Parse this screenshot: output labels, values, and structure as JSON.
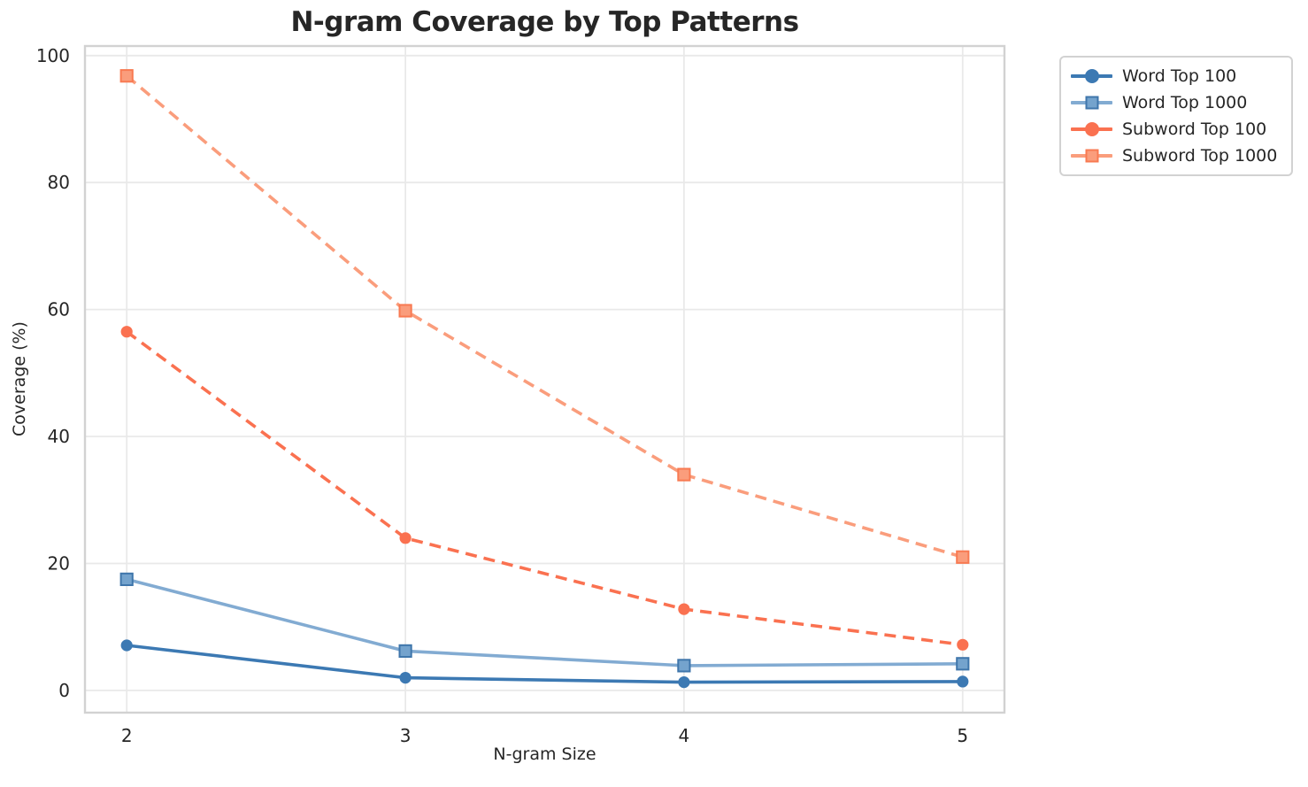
{
  "chart_data": {
    "type": "line",
    "title": "N-gram Coverage by Top Patterns",
    "xlabel": "N-gram Size",
    "ylabel": "Coverage (%)",
    "x": [
      2,
      3,
      4,
      5
    ],
    "xticks": [
      2,
      3,
      4,
      5
    ],
    "yticks": [
      0,
      20,
      40,
      60,
      80,
      100
    ],
    "xlim": [
      1.85,
      5.15
    ],
    "ylim": [
      -3.5,
      101.5
    ],
    "grid": true,
    "legend_position": "outside-upper-right",
    "series": [
      {
        "name": "Word Top 100",
        "values": [
          7.1,
          2.0,
          1.3,
          1.4
        ],
        "color": "#3c79b3",
        "marker": "circle",
        "linestyle": "solid"
      },
      {
        "name": "Word Top 1000",
        "values": [
          17.5,
          6.2,
          3.9,
          4.2
        ],
        "color": "#82abd2",
        "marker": "square",
        "marker_face": "#74a3cd",
        "marker_edge": "#3f76ab",
        "linestyle": "solid"
      },
      {
        "name": "Subword Top 100",
        "values": [
          56.5,
          24.0,
          12.8,
          7.2
        ],
        "color": "#fa7150",
        "marker": "circle",
        "linestyle": "dashed"
      },
      {
        "name": "Subword Top 1000",
        "values": [
          96.8,
          59.8,
          34.0,
          21.0
        ],
        "color": "#fa9d7c",
        "marker": "square",
        "marker_face": "#fa9d7c",
        "marker_edge": "#f87a52",
        "linestyle": "dashed"
      }
    ],
    "style": {
      "grid_color": "#e9e9e9",
      "spine_color": "#d2d2d2",
      "text_color": "#262626",
      "background": "#ffffff"
    }
  }
}
